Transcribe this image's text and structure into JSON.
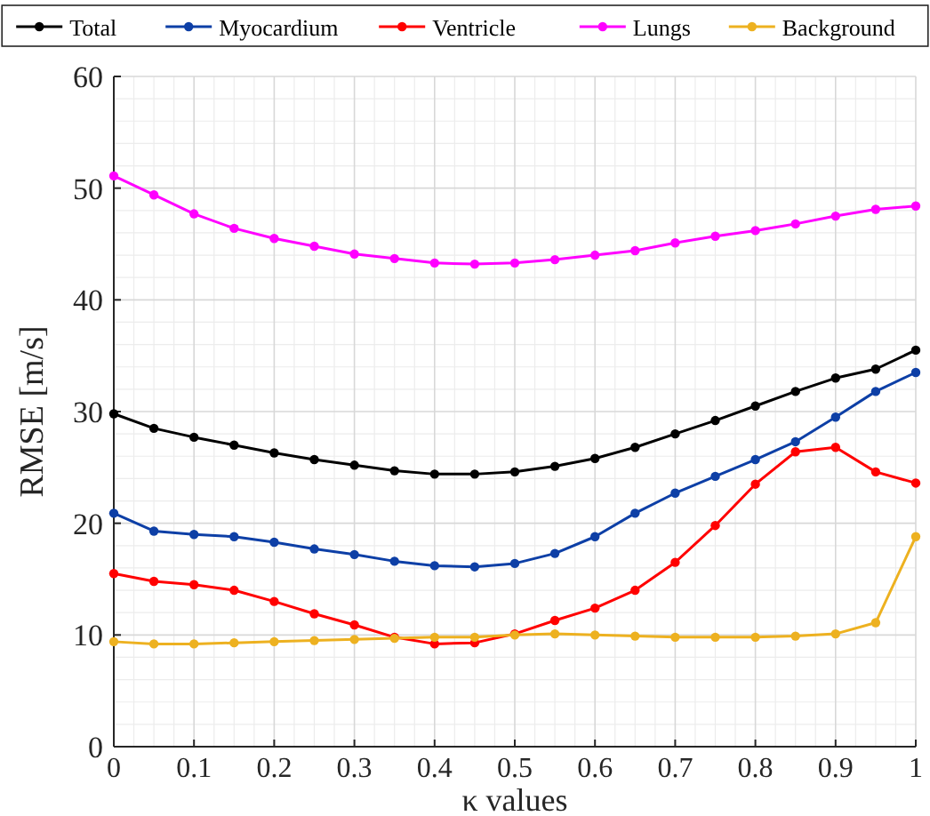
{
  "chart_data": {
    "type": "line",
    "xlabel": "κ values",
    "ylabel": "RMSE [m/s]",
    "x": [
      0,
      0.05,
      0.1,
      0.15,
      0.2,
      0.25,
      0.3,
      0.35,
      0.4,
      0.45,
      0.5,
      0.55,
      0.6,
      0.65,
      0.7,
      0.75,
      0.8,
      0.85,
      0.9,
      0.95,
      1
    ],
    "series": [
      {
        "name": "Total",
        "color": "#000000",
        "values": [
          29.8,
          28.5,
          27.7,
          27.0,
          26.3,
          25.7,
          25.2,
          24.7,
          24.4,
          24.4,
          24.6,
          25.1,
          25.8,
          26.8,
          28.0,
          29.2,
          30.5,
          31.8,
          33.0,
          33.8,
          35.5
        ]
      },
      {
        "name": "Myocardium",
        "color": "#0d3fa6",
        "values": [
          20.9,
          19.3,
          19.0,
          18.8,
          18.3,
          17.7,
          17.2,
          16.6,
          16.2,
          16.1,
          16.4,
          17.3,
          18.8,
          20.9,
          22.7,
          24.2,
          25.7,
          27.3,
          29.5,
          31.8,
          33.5
        ]
      },
      {
        "name": "Ventricle",
        "color": "#ff0000",
        "values": [
          15.5,
          14.8,
          14.5,
          14.0,
          13.0,
          11.9,
          10.9,
          9.8,
          9.2,
          9.3,
          10.1,
          11.3,
          12.4,
          14.0,
          16.5,
          19.8,
          23.5,
          26.4,
          26.8,
          24.6,
          23.6
        ]
      },
      {
        "name": "Lungs",
        "color": "#ff00ff",
        "values": [
          51.1,
          49.4,
          47.7,
          46.4,
          45.5,
          44.8,
          44.1,
          43.7,
          43.3,
          43.2,
          43.3,
          43.6,
          44.0,
          44.4,
          45.1,
          45.7,
          46.2,
          46.8,
          47.5,
          48.1,
          48.4
        ]
      },
      {
        "name": "Background",
        "color": "#edb120",
        "values": [
          9.4,
          9.2,
          9.2,
          9.3,
          9.4,
          9.5,
          9.6,
          9.7,
          9.8,
          9.8,
          10.0,
          10.1,
          10.0,
          9.9,
          9.8,
          9.8,
          9.8,
          9.9,
          10.1,
          11.1,
          18.8
        ]
      }
    ],
    "xlim": [
      0,
      1
    ],
    "xticks": [
      0,
      0.1,
      0.2,
      0.3,
      0.4,
      0.5,
      0.6,
      0.7,
      0.8,
      0.9,
      1
    ],
    "ylim": [
      0,
      60
    ],
    "yticks": [
      0,
      10,
      20,
      30,
      40,
      50,
      60
    ],
    "grid": true,
    "legend": "top",
    "marker": "circle",
    "line_style": "solid"
  }
}
